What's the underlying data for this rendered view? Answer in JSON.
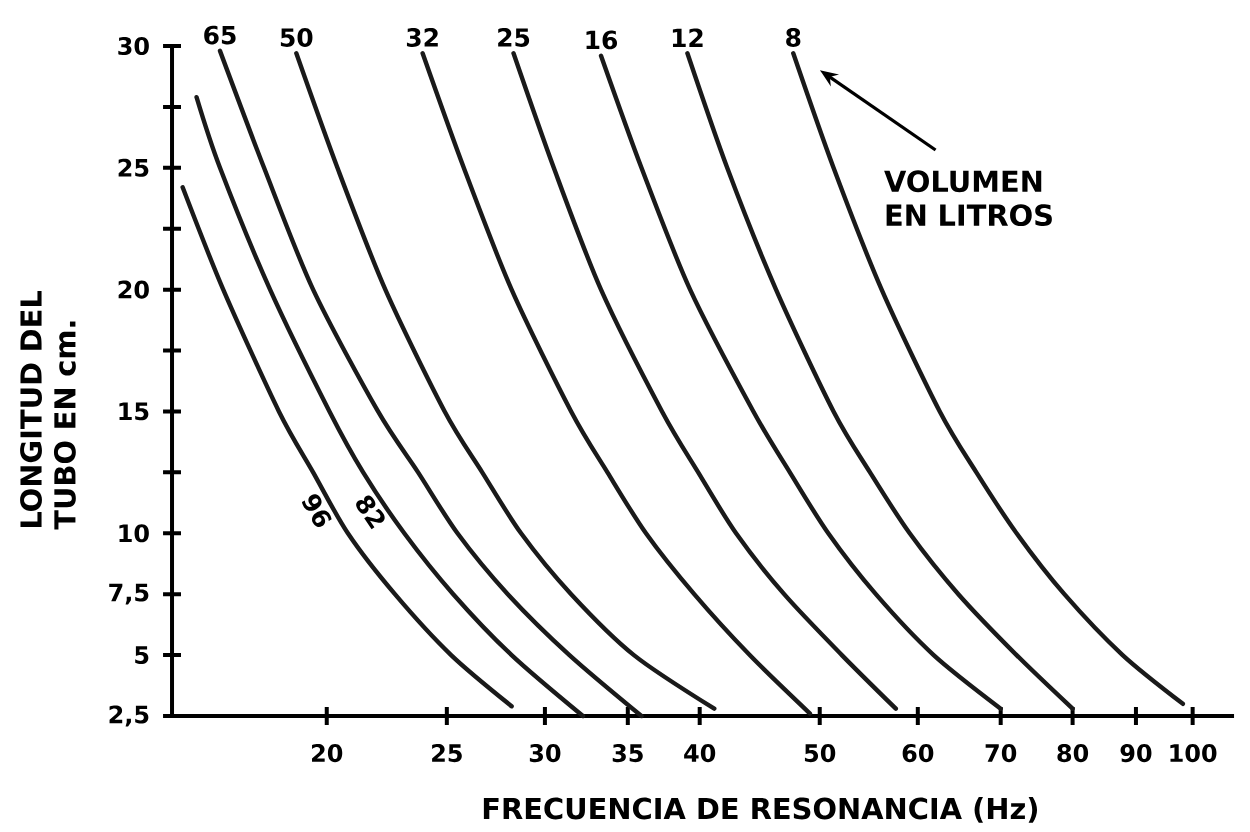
{
  "chart_data": {
    "type": "line",
    "xlabel": "FRECUENCIA DE RESONANCIA (Hz)",
    "ylabel": "LONGITUD DEL TUBO EN cm.",
    "annotations": [
      "VOLUMEN EN LITROS"
    ],
    "log": "x",
    "xlim": [
      15,
      108
    ],
    "ylim": [
      2.5,
      30
    ],
    "xticks": [
      20,
      25,
      30,
      35,
      40,
      50,
      60,
      70,
      80,
      90,
      100
    ],
    "yticks": [
      {
        "value": 2.5,
        "label": "2,5"
      },
      5,
      {
        "value": 7.5,
        "label": "7,5"
      },
      10,
      {
        "value": 12.5,
        "label": null
      },
      15,
      {
        "value": 17.5,
        "label": null
      },
      20,
      {
        "value": 22.5,
        "label": null
      },
      25,
      {
        "value": 27.5,
        "label": null
      },
      30
    ],
    "marker": "none",
    "line_style": "solid",
    "series": [
      {
        "name": "96",
        "color": "#1a1a1a",
        "x": [
          15.3,
          16.5,
          18.3,
          19.5,
          20.8,
          22.7,
          25.2,
          28.2
        ],
        "values": [
          24.2,
          20,
          15,
          12.5,
          10,
          7.5,
          5,
          2.9
        ]
      },
      {
        "name": "82",
        "color": "#1a1a1a",
        "x": [
          15.7,
          16.4,
          18.0,
          20.1,
          21.4,
          23.1,
          25.3,
          28.2,
          32.2
        ],
        "values": [
          27.9,
          25,
          20,
          15,
          12.5,
          10,
          7.5,
          5,
          2.5
        ]
      },
      {
        "name": "65",
        "color": "#1a1a1a",
        "x": [
          16.4,
          17.8,
          19.5,
          22.0,
          23.7,
          25.5,
          28.0,
          31.4,
          35.9
        ],
        "values": [
          29.8,
          25,
          20,
          15,
          12.5,
          10,
          7.5,
          5,
          2.5
        ]
      },
      {
        "name": "50",
        "color": "#1a1a1a",
        "x": [
          18.9,
          20.4,
          22.3,
          24.9,
          26.7,
          28.7,
          31.5,
          35.4,
          41.1
        ],
        "values": [
          29.7,
          25,
          20,
          15,
          12.5,
          10,
          7.5,
          5,
          2.8
        ]
      },
      {
        "name": "32",
        "color": "#1a1a1a",
        "x": [
          23.9,
          25.8,
          28.2,
          31.5,
          33.7,
          36.2,
          39.6,
          43.9,
          49.1
        ],
        "values": [
          29.7,
          25,
          20,
          15,
          12.5,
          10,
          7.5,
          5,
          2.6
        ]
      },
      {
        "name": "25",
        "color": "#1a1a1a",
        "x": [
          28.3,
          30.5,
          33.3,
          37.3,
          39.9,
          42.8,
          46.8,
          52.1,
          57.6
        ],
        "values": [
          29.7,
          25,
          20,
          15,
          12.5,
          10,
          7.5,
          5,
          2.8
        ]
      },
      {
        "name": "16",
        "color": "#1a1a1a",
        "x": [
          33.3,
          35.9,
          39.3,
          44.2,
          47.3,
          50.8,
          55.5,
          61.8,
          70.0
        ],
        "values": [
          29.6,
          25,
          20,
          15,
          12.5,
          10,
          7.5,
          5,
          2.8
        ]
      },
      {
        "name": "12",
        "color": "#1a1a1a",
        "x": [
          39.1,
          42.1,
          46.1,
          51.3,
          54.9,
          59.1,
          64.7,
          72.1,
          80.0
        ],
        "values": [
          29.7,
          25,
          20,
          15,
          12.5,
          10,
          7.5,
          5,
          2.8
        ]
      },
      {
        "name": "8",
        "color": "#1a1a1a",
        "x": [
          47.6,
          51.3,
          56.1,
          62.5,
          66.9,
          72.1,
          78.8,
          87.8,
          98.2
        ],
        "values": [
          29.7,
          25,
          20,
          15,
          12.5,
          10,
          7.5,
          5,
          3.0
        ]
      }
    ]
  }
}
